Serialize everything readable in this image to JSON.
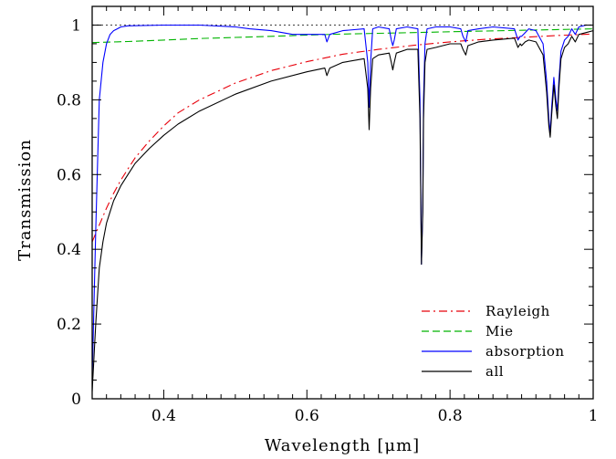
{
  "chart_data": {
    "type": "line",
    "xlabel": "Wavelength [μm]",
    "ylabel": "Transmission",
    "xlim": [
      0.3,
      1.0
    ],
    "ylim": [
      0,
      1.05
    ],
    "x_ticks": [
      0.4,
      0.6,
      0.8,
      1.0
    ],
    "x_tick_labels": [
      "0.4",
      "0.6",
      "0.8",
      "1"
    ],
    "y_ticks": [
      0,
      0.2,
      0.4,
      0.6,
      0.8,
      1.0
    ],
    "y_tick_labels": [
      "0",
      "0.2",
      "0.4",
      "0.6",
      "0.8",
      "1"
    ],
    "legend_position": "bottom-right",
    "reference_line": {
      "y": 1.0,
      "style": "dotted",
      "color": "#555555"
    },
    "series": [
      {
        "name": "Rayleigh",
        "color": "#e8000b",
        "style": "dash-dot",
        "x": [
          0.3,
          0.31,
          0.32,
          0.33,
          0.34,
          0.35,
          0.36,
          0.38,
          0.4,
          0.42,
          0.45,
          0.5,
          0.55,
          0.6,
          0.65,
          0.7,
          0.75,
          0.8,
          0.85,
          0.9,
          0.95,
          1.0
        ],
        "y": [
          0.42,
          0.465,
          0.51,
          0.55,
          0.585,
          0.615,
          0.645,
          0.69,
          0.73,
          0.765,
          0.8,
          0.845,
          0.878,
          0.902,
          0.922,
          0.935,
          0.946,
          0.955,
          0.962,
          0.967,
          0.972,
          0.976
        ]
      },
      {
        "name": "Mie",
        "color": "#00b400",
        "style": "dashed",
        "x": [
          0.3,
          0.35,
          0.4,
          0.45,
          0.5,
          0.55,
          0.6,
          0.65,
          0.7,
          0.75,
          0.8,
          0.85,
          0.9,
          0.95,
          1.0
        ],
        "y": [
          0.953,
          0.956,
          0.96,
          0.964,
          0.967,
          0.97,
          0.973,
          0.976,
          0.978,
          0.98,
          0.982,
          0.984,
          0.986,
          0.988,
          0.99
        ]
      },
      {
        "name": "absorption",
        "color": "#0000ff",
        "style": "solid",
        "x": [
          0.3,
          0.305,
          0.31,
          0.315,
          0.32,
          0.325,
          0.33,
          0.335,
          0.34,
          0.35,
          0.4,
          0.45,
          0.5,
          0.52,
          0.55,
          0.58,
          0.6,
          0.625,
          0.628,
          0.632,
          0.65,
          0.68,
          0.685,
          0.687,
          0.689,
          0.692,
          0.7,
          0.715,
          0.718,
          0.72,
          0.722,
          0.725,
          0.74,
          0.755,
          0.758,
          0.76,
          0.762,
          0.763,
          0.765,
          0.768,
          0.78,
          0.8,
          0.815,
          0.818,
          0.822,
          0.825,
          0.84,
          0.86,
          0.89,
          0.895,
          0.898,
          0.9,
          0.905,
          0.91,
          0.92,
          0.93,
          0.935,
          0.938,
          0.94,
          0.942,
          0.945,
          0.948,
          0.95,
          0.952,
          0.955,
          0.96,
          0.965,
          0.97,
          0.975,
          0.98,
          0.99,
          1.0
        ],
        "y": [
          0.05,
          0.45,
          0.8,
          0.9,
          0.95,
          0.975,
          0.985,
          0.99,
          0.995,
          0.998,
          1.0,
          1.0,
          0.995,
          0.99,
          0.985,
          0.975,
          0.975,
          0.975,
          0.955,
          0.975,
          0.985,
          0.99,
          0.9,
          0.78,
          0.9,
          0.99,
          0.995,
          0.99,
          0.96,
          0.945,
          0.96,
          0.99,
          0.995,
          0.99,
          0.8,
          0.36,
          0.52,
          0.8,
          0.95,
          0.99,
          0.995,
          0.995,
          0.99,
          0.97,
          0.955,
          0.985,
          0.99,
          0.995,
          0.99,
          0.96,
          0.97,
          0.97,
          0.98,
          0.99,
          0.985,
          0.95,
          0.85,
          0.75,
          0.71,
          0.78,
          0.86,
          0.8,
          0.77,
          0.85,
          0.93,
          0.96,
          0.97,
          0.99,
          0.975,
          0.995,
          1.0,
          1.0
        ]
      },
      {
        "name": "all",
        "color": "#000000",
        "style": "solid",
        "x": [
          0.3,
          0.305,
          0.31,
          0.315,
          0.32,
          0.325,
          0.33,
          0.335,
          0.34,
          0.35,
          0.36,
          0.38,
          0.4,
          0.42,
          0.45,
          0.5,
          0.55,
          0.6,
          0.625,
          0.628,
          0.632,
          0.65,
          0.68,
          0.685,
          0.687,
          0.689,
          0.692,
          0.7,
          0.715,
          0.718,
          0.72,
          0.722,
          0.725,
          0.74,
          0.755,
          0.758,
          0.76,
          0.762,
          0.763,
          0.765,
          0.768,
          0.78,
          0.8,
          0.815,
          0.818,
          0.822,
          0.825,
          0.84,
          0.86,
          0.89,
          0.895,
          0.898,
          0.9,
          0.905,
          0.91,
          0.92,
          0.93,
          0.935,
          0.938,
          0.94,
          0.942,
          0.945,
          0.948,
          0.95,
          0.952,
          0.955,
          0.96,
          0.965,
          0.97,
          0.975,
          0.98,
          0.99,
          1.0
        ],
        "y": [
          0.02,
          0.2,
          0.35,
          0.42,
          0.47,
          0.5,
          0.53,
          0.55,
          0.57,
          0.6,
          0.63,
          0.67,
          0.705,
          0.735,
          0.77,
          0.815,
          0.85,
          0.875,
          0.885,
          0.865,
          0.885,
          0.9,
          0.91,
          0.83,
          0.72,
          0.83,
          0.91,
          0.92,
          0.925,
          0.9,
          0.88,
          0.9,
          0.925,
          0.935,
          0.935,
          0.75,
          0.36,
          0.5,
          0.75,
          0.9,
          0.935,
          0.94,
          0.95,
          0.95,
          0.935,
          0.92,
          0.945,
          0.955,
          0.96,
          0.965,
          0.94,
          0.95,
          0.945,
          0.955,
          0.96,
          0.955,
          0.92,
          0.82,
          0.73,
          0.7,
          0.76,
          0.84,
          0.78,
          0.75,
          0.83,
          0.91,
          0.94,
          0.95,
          0.97,
          0.955,
          0.975,
          0.98,
          0.985
        ]
      }
    ]
  }
}
